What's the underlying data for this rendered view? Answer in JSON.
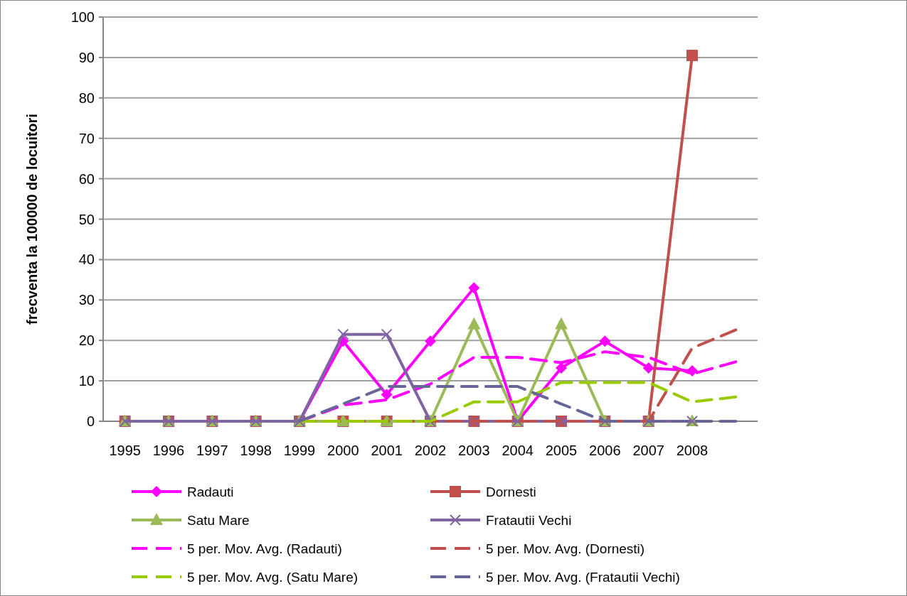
{
  "chart_data": {
    "type": "line",
    "ylabel": "frecventa la 100000 de locuitori",
    "categories": [
      "1995",
      "1996",
      "1997",
      "1998",
      "1999",
      "2000",
      "2001",
      "2002",
      "2003",
      "2004",
      "2005",
      "2006",
      "2007",
      "2008",
      null
    ],
    "ylim": [
      0,
      100
    ],
    "yticks": [
      0,
      10,
      20,
      30,
      40,
      50,
      60,
      70,
      80,
      90,
      100
    ],
    "grid": "y",
    "legend": "bottom",
    "series": [
      {
        "name": "Radauti",
        "color": "#ff00ff",
        "marker": "diamond",
        "line_style": "solid",
        "values": [
          null,
          null,
          null,
          0,
          0,
          19.8,
          6.6,
          19.8,
          33,
          0,
          13.2,
          19.8,
          13.2,
          12.5,
          null
        ]
      },
      {
        "name": "Dornesti",
        "color": "#c0504d",
        "marker": "square",
        "line_style": "solid",
        "values": [
          0,
          0,
          0,
          0,
          0,
          0,
          0,
          0,
          0,
          0,
          0,
          0,
          0,
          90.5,
          null
        ]
      },
      {
        "name": "Satu Mare",
        "color": "#9bbb59",
        "marker": "triangle",
        "line_style": "solid",
        "values": [
          0,
          0,
          0,
          0,
          0,
          0,
          0,
          0,
          24,
          0,
          24,
          0,
          0,
          0,
          null
        ]
      },
      {
        "name": "Fratautii Vechi",
        "color": "#8064a2",
        "marker": "cross",
        "line_style": "solid",
        "values": [
          0,
          0,
          0,
          0,
          0,
          21.5,
          21.5,
          0,
          0,
          0,
          0,
          0,
          0,
          0,
          null
        ]
      },
      {
        "name": "5 per. Mov. Avg. (Radauti)",
        "color": "#ff00ff",
        "marker": "none",
        "line_style": "dashed",
        "values": [
          null,
          null,
          null,
          null,
          0,
          4,
          5.3,
          9.2,
          15.8,
          15.8,
          14.5,
          17.2,
          15.8,
          11.7,
          14.7
        ]
      },
      {
        "name": "5 per. Mov. Avg. (Dornesti)",
        "color": "#c0504d",
        "marker": "none",
        "line_style": "dashed",
        "values": [
          null,
          null,
          null,
          null,
          0,
          0,
          0,
          0,
          0,
          0,
          0,
          0,
          0,
          18.1,
          22.6
        ]
      },
      {
        "name": "5 per. Mov. Avg. (Satu Mare)",
        "color": "#99cc00",
        "marker": "none",
        "line_style": "dashed",
        "values": [
          null,
          null,
          null,
          null,
          0,
          0,
          0,
          0,
          4.8,
          4.8,
          9.6,
          9.6,
          9.6,
          4.8,
          6
        ]
      },
      {
        "name": "5 per. Mov. Avg. (Fratautii Vechi)",
        "color": "#666699",
        "marker": "none",
        "line_style": "dashed",
        "values": [
          null,
          null,
          null,
          null,
          0,
          4.3,
          8.6,
          8.6,
          8.6,
          8.6,
          4.3,
          0,
          0,
          0,
          0
        ]
      }
    ]
  }
}
